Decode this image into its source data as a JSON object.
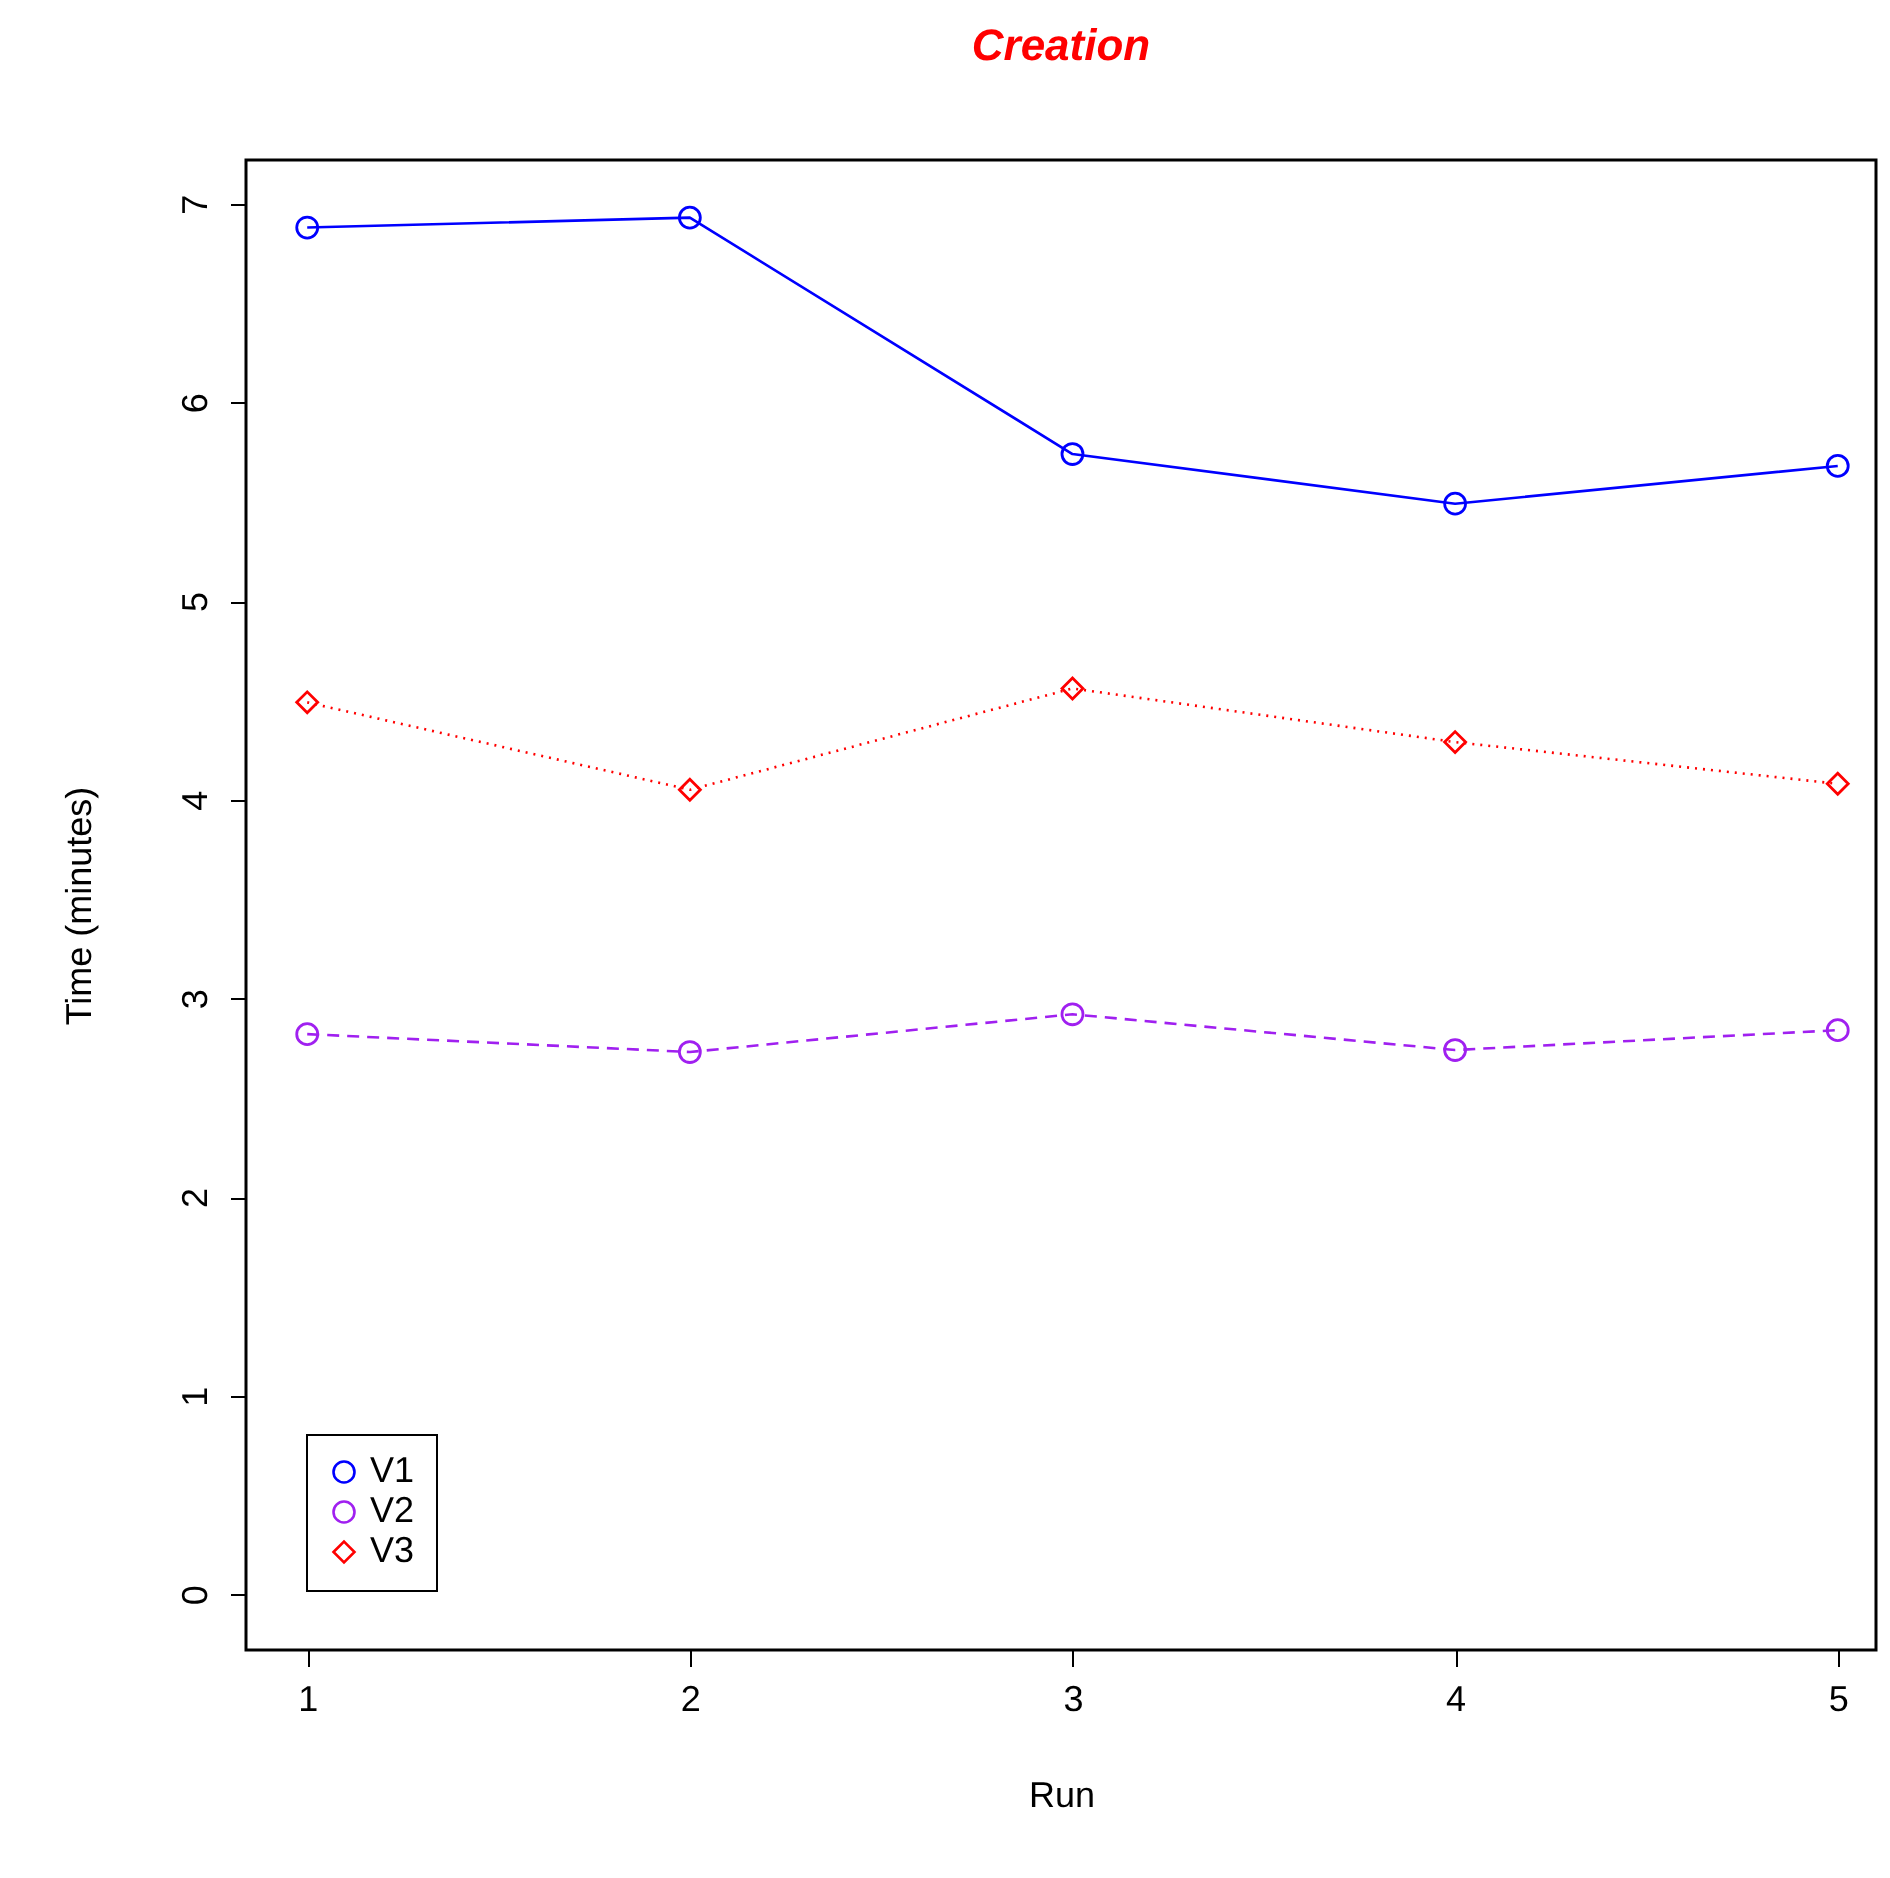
{
  "chart_data": {
    "type": "line",
    "title": "Creation",
    "xlabel": "Run",
    "ylabel": "Time (minutes)",
    "x": [
      1,
      2,
      3,
      4,
      5
    ],
    "series": [
      {
        "name": "V1",
        "color": "#0000ff",
        "marker": "circle",
        "line_style": "solid",
        "values": [
          6.88,
          6.93,
          5.74,
          5.49,
          5.68
        ]
      },
      {
        "name": "V2",
        "color": "#a020f0",
        "marker": "circle",
        "line_style": "dashed",
        "values": [
          2.82,
          2.73,
          2.92,
          2.74,
          2.84
        ]
      },
      {
        "name": "V3",
        "color": "#ff0000",
        "marker": "diamond",
        "line_style": "dotted",
        "values": [
          4.49,
          4.05,
          4.56,
          4.29,
          4.08
        ]
      }
    ],
    "xlim": [
      0.84,
      5.1
    ],
    "xticks": [
      1,
      2,
      3,
      4,
      5
    ],
    "ylim": [
      -0.28,
      7.22
    ],
    "yticks": [
      0,
      1,
      2,
      3,
      4,
      5,
      6,
      7
    ],
    "grid": false,
    "legend": "bottom left"
  }
}
